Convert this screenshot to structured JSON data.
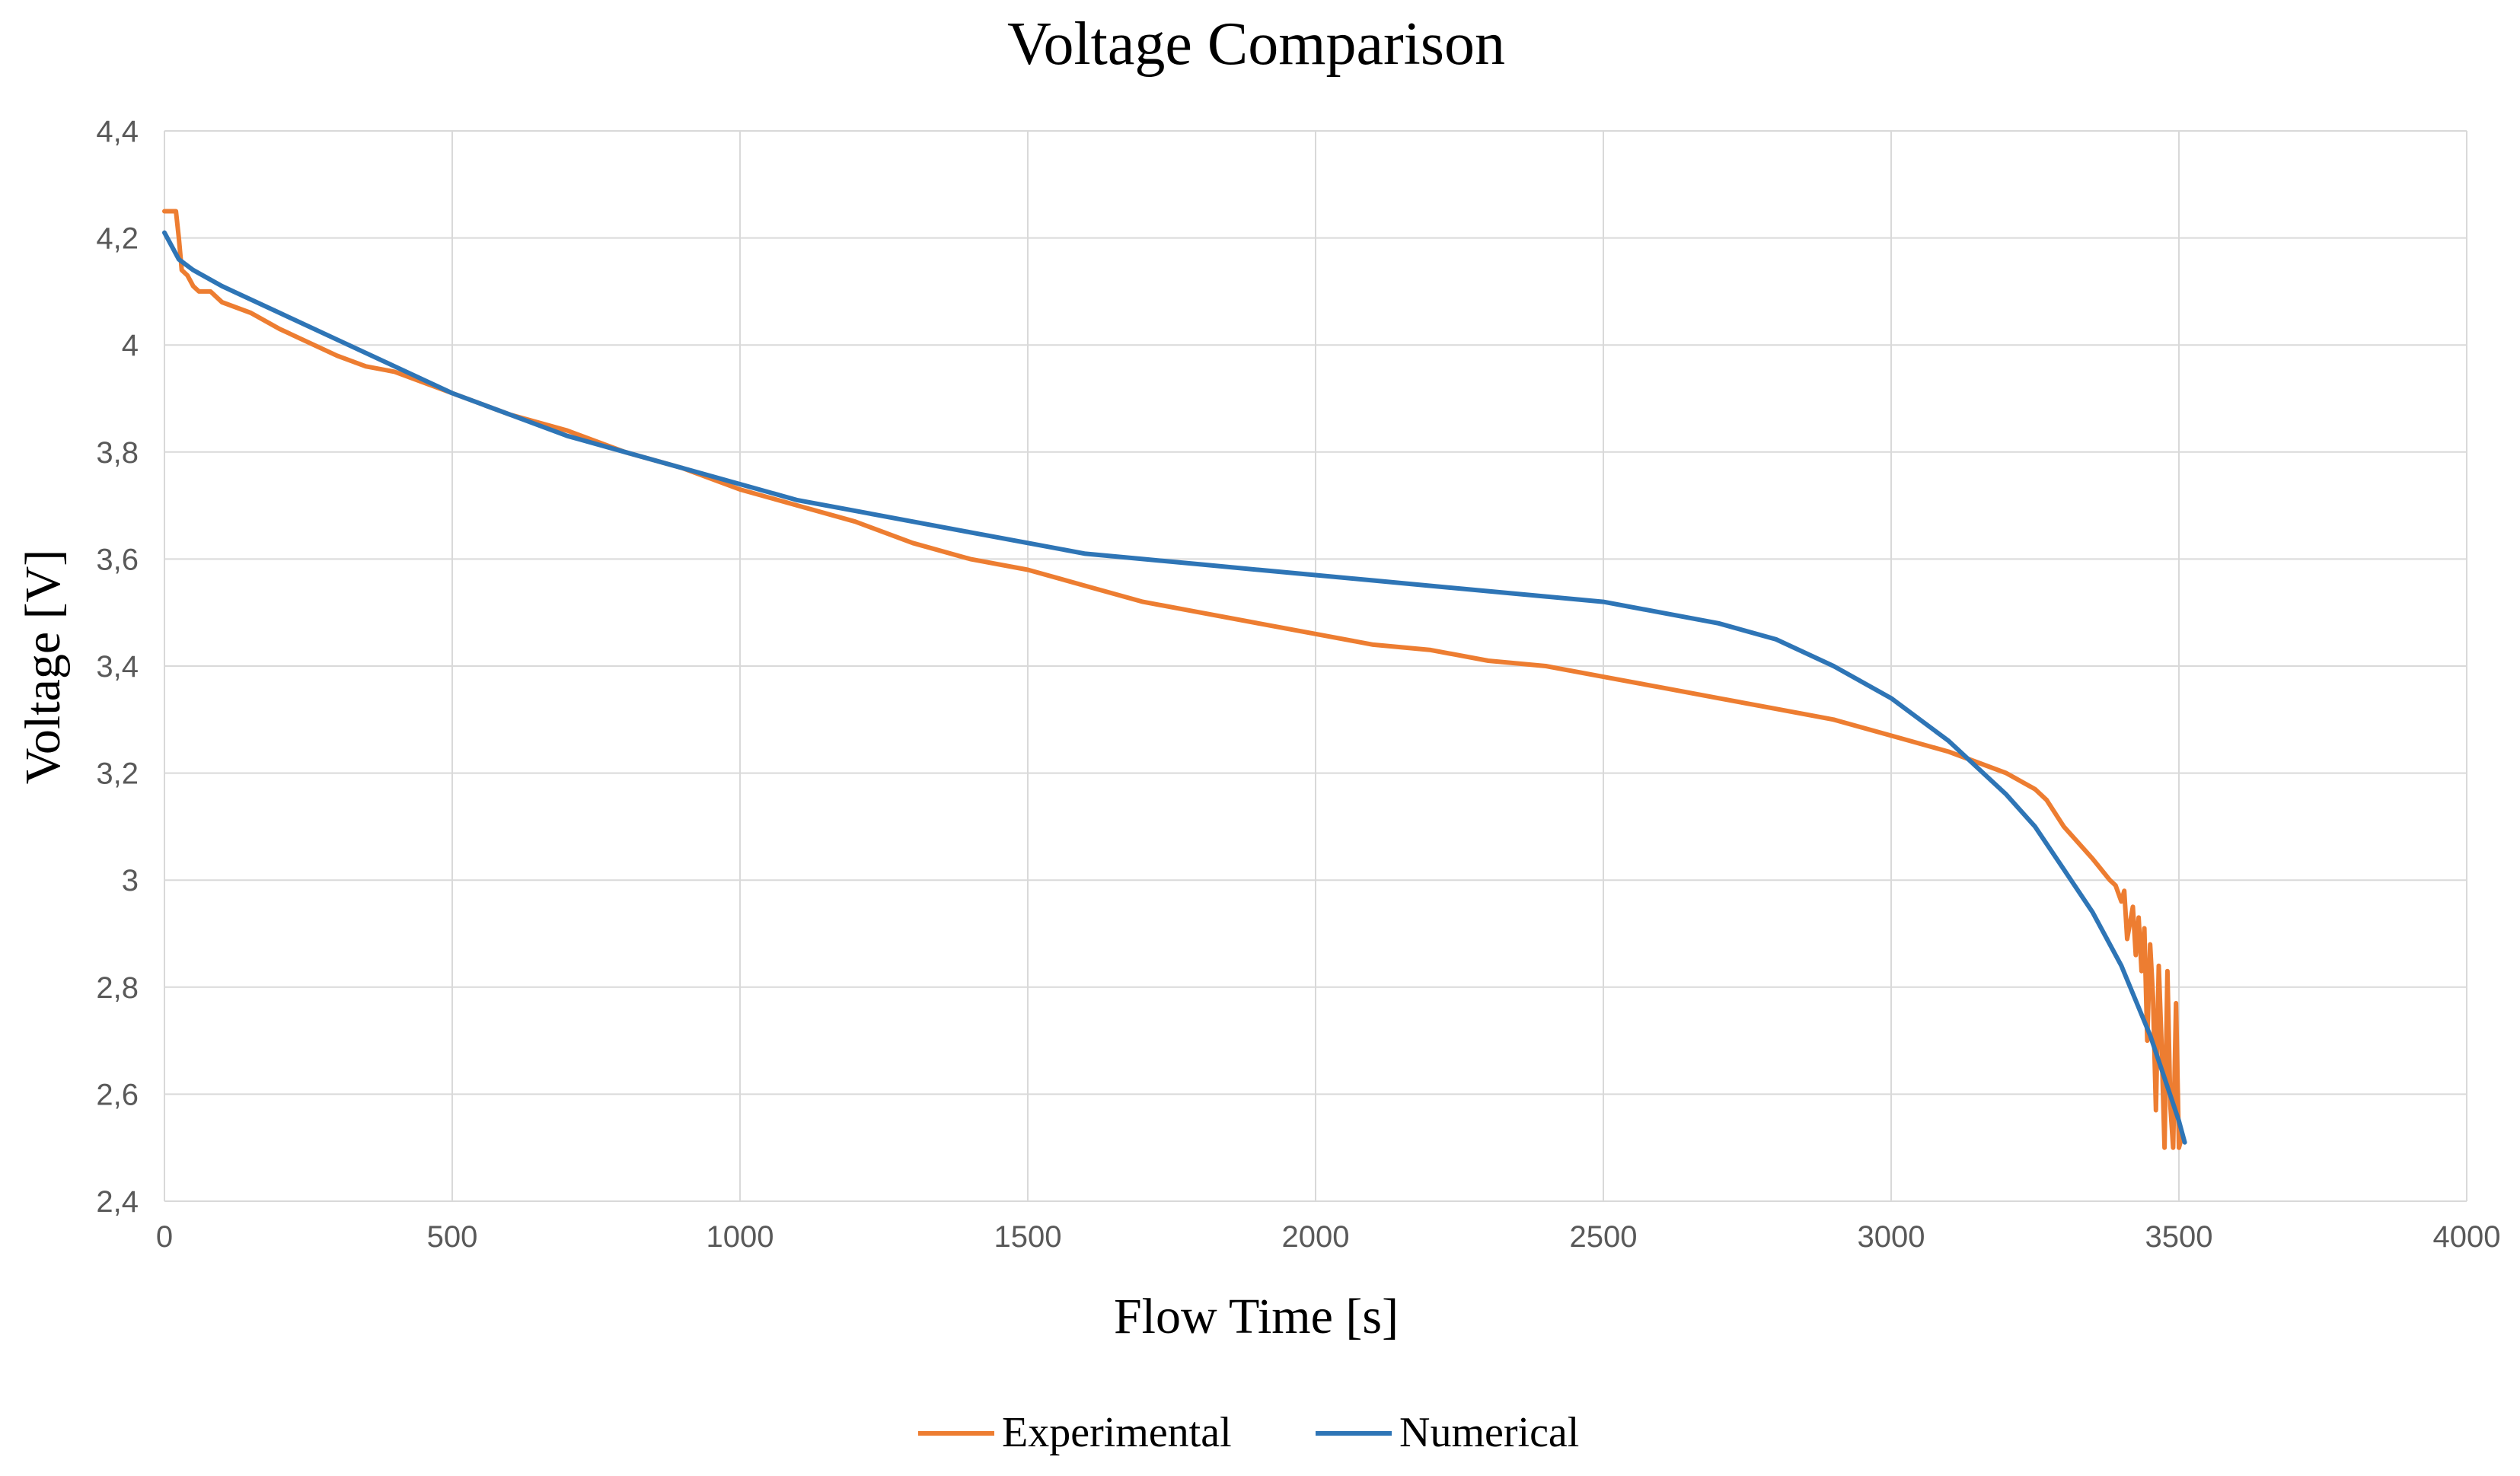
{
  "chart_data": {
    "type": "line",
    "title": "Voltage Comparison",
    "xlabel": "Flow Time [s]",
    "ylabel": "Voltage [V]",
    "xlim": [
      0,
      4000
    ],
    "ylim": [
      2.4,
      4.4
    ],
    "x_ticks": [
      0,
      500,
      1000,
      1500,
      2000,
      2500,
      3000,
      3500,
      4000
    ],
    "x_tick_labels": [
      "0",
      "500",
      "1000",
      "1500",
      "2000",
      "2500",
      "3000",
      "3500",
      "4000"
    ],
    "y_ticks": [
      2.4,
      2.6,
      2.8,
      3.0,
      3.2,
      3.4,
      3.6,
      3.8,
      4.0,
      4.2,
      4.4
    ],
    "y_tick_labels": [
      "2,4",
      "2,6",
      "2,8",
      "3",
      "3,2",
      "3,4",
      "3,6",
      "3,8",
      "4",
      "4,2",
      "4,4"
    ],
    "grid": true,
    "legend_position": "bottom-center",
    "series": [
      {
        "name": "Experimental",
        "color": "#ED7D31",
        "x": [
          0,
          10,
          20,
          25,
          30,
          40,
          50,
          60,
          80,
          100,
          150,
          200,
          300,
          350,
          400,
          500,
          600,
          700,
          800,
          900,
          1000,
          1100,
          1200,
          1300,
          1400,
          1500,
          1600,
          1700,
          1800,
          1900,
          2000,
          2100,
          2200,
          2300,
          2400,
          2500,
          2600,
          2700,
          2800,
          2900,
          3000,
          3100,
          3150,
          3200,
          3250,
          3270,
          3300,
          3350,
          3380,
          3390,
          3400,
          3405,
          3410,
          3420,
          3425,
          3430,
          3435,
          3440,
          3445,
          3450,
          3455,
          3460,
          3465,
          3470,
          3475,
          3480,
          3485,
          3490,
          3495,
          3500,
          3505
        ],
        "y": [
          4.25,
          4.25,
          4.25,
          4.2,
          4.14,
          4.13,
          4.11,
          4.1,
          4.1,
          4.08,
          4.06,
          4.03,
          3.98,
          3.96,
          3.95,
          3.91,
          3.87,
          3.84,
          3.8,
          3.77,
          3.73,
          3.7,
          3.67,
          3.63,
          3.6,
          3.58,
          3.55,
          3.52,
          3.5,
          3.48,
          3.46,
          3.44,
          3.43,
          3.41,
          3.4,
          3.38,
          3.36,
          3.34,
          3.32,
          3.3,
          3.27,
          3.24,
          3.22,
          3.2,
          3.17,
          3.15,
          3.1,
          3.04,
          3.0,
          2.99,
          2.96,
          2.98,
          2.89,
          2.95,
          2.86,
          2.93,
          2.83,
          2.91,
          2.7,
          2.88,
          2.78,
          2.57,
          2.84,
          2.69,
          2.5,
          2.83,
          2.58,
          2.5,
          2.77,
          2.5,
          2.52
        ]
      },
      {
        "name": "Numerical",
        "color": "#2E75B6",
        "x": [
          0,
          25,
          50,
          100,
          200,
          300,
          400,
          500,
          600,
          700,
          800,
          900,
          1000,
          1100,
          1200,
          1300,
          1400,
          1500,
          1600,
          1700,
          1800,
          1900,
          2000,
          2100,
          2200,
          2300,
          2400,
          2500,
          2600,
          2700,
          2800,
          2900,
          3000,
          3100,
          3150,
          3200,
          3250,
          3300,
          3350,
          3400,
          3450,
          3500,
          3510
        ],
        "y": [
          4.21,
          4.16,
          4.14,
          4.11,
          4.06,
          4.01,
          3.96,
          3.91,
          3.87,
          3.83,
          3.8,
          3.77,
          3.74,
          3.71,
          3.69,
          3.67,
          3.65,
          3.63,
          3.61,
          3.6,
          3.59,
          3.58,
          3.57,
          3.56,
          3.55,
          3.54,
          3.53,
          3.52,
          3.5,
          3.48,
          3.45,
          3.4,
          3.34,
          3.26,
          3.21,
          3.16,
          3.1,
          3.02,
          2.94,
          2.84,
          2.71,
          2.55,
          2.51
        ]
      }
    ]
  }
}
